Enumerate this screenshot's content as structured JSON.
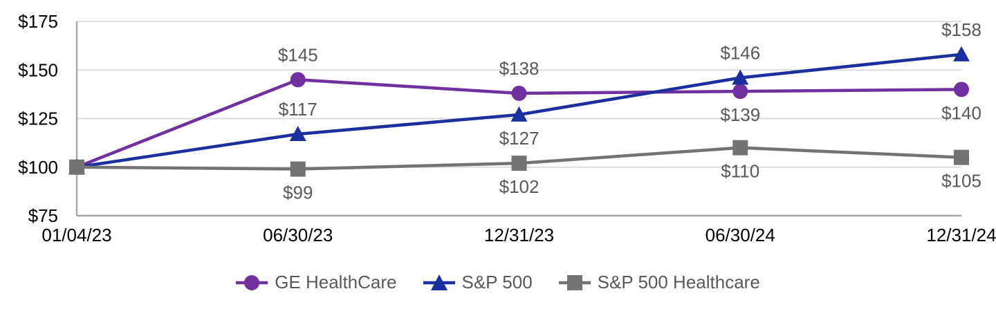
{
  "page": {
    "background": "#FFFFFF"
  },
  "chart_data": {
    "type": "line",
    "x_categories": [
      "01/04/23",
      "06/30/23",
      "12/31/23",
      "06/30/24",
      "12/31/24"
    ],
    "y_axis": {
      "min": 75,
      "max": 175,
      "ticks": [
        75,
        100,
        125,
        150,
        175
      ],
      "tick_labels": [
        "$75",
        "$100",
        "$125",
        "$150",
        "$175"
      ]
    },
    "grid": "horizontal-only",
    "legend_position": "bottom-center",
    "series": [
      {
        "name": "GE HealthCare",
        "color": "#7030A0",
        "marker": "circle",
        "values": [
          100,
          145,
          138,
          139,
          140
        ],
        "data_labels": [
          "",
          "$145",
          "$138",
          "$139",
          "$140"
        ],
        "label_positions": [
          "none",
          "above",
          "above",
          "below",
          "below"
        ]
      },
      {
        "name": "S&P 500",
        "color": "#1C2FA0",
        "marker": "triangle",
        "values": [
          100,
          117,
          127,
          146,
          158
        ],
        "data_labels": [
          "",
          "$117",
          "$127",
          "$146",
          "$158"
        ],
        "label_positions": [
          "none",
          "above",
          "below",
          "above",
          "above"
        ]
      },
      {
        "name": "S&P 500 Healthcare",
        "color": "#737373",
        "marker": "square",
        "values": [
          100,
          99,
          102,
          110,
          105
        ],
        "data_labels": [
          "",
          "$99",
          "$102",
          "$110",
          "$105"
        ],
        "label_positions": [
          "none",
          "below",
          "below",
          "below",
          "below"
        ]
      }
    ],
    "style": {
      "data_label_color": "#595959",
      "axis_label_color": "#000000",
      "gridline_color": "#D9D9D9",
      "axis_line_color": "#A6A6A6",
      "legend_text_color": "#595959",
      "background": "#FFFFFF"
    }
  }
}
